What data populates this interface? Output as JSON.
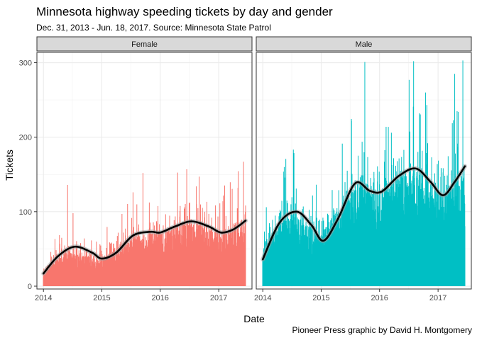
{
  "chart_data": {
    "type": "bar",
    "title": "Minnesota highway speeding tickets by day and gender",
    "subtitle": "Dec. 31, 2013 - Jun. 18, 2017. Source: Minnesota State Patrol",
    "caption": "Pioneer Press graphic by David H. Montgomery",
    "xlabel": "Date",
    "ylabel": "Tickets",
    "xlim": [
      "2013-12-31",
      "2017-06-18"
    ],
    "ylim": [
      0,
      310
    ],
    "x_ticks": [
      "2014",
      "2015",
      "2016",
      "2017"
    ],
    "y_ticks": [
      0,
      100,
      200,
      300
    ],
    "grid": true,
    "panels": [
      {
        "label": "Female",
        "color": "#F8766D",
        "daily_baseline": [
          {
            "x": "2014-01-01",
            "y": 22
          },
          {
            "x": "2014-06-01",
            "y": 40
          },
          {
            "x": "2014-12-15",
            "y": 32
          },
          {
            "x": "2015-07-01",
            "y": 58
          },
          {
            "x": "2016-01-01",
            "y": 64
          },
          {
            "x": "2016-07-01",
            "y": 80
          },
          {
            "x": "2017-01-01",
            "y": 65
          },
          {
            "x": "2017-06-18",
            "y": 80
          }
        ],
        "peaks": [
          {
            "x": "2014-06-01",
            "y": 136
          },
          {
            "x": "2014-07-05",
            "y": 98
          },
          {
            "x": "2015-07-15",
            "y": 126
          },
          {
            "x": "2015-09-15",
            "y": 152
          },
          {
            "x": "2016-06-15",
            "y": 157
          },
          {
            "x": "2016-09-01",
            "y": 147
          },
          {
            "x": "2017-05-01",
            "y": 132
          },
          {
            "x": "2017-06-05",
            "y": 167
          }
        ],
        "trend": [
          {
            "x": "2014-01-01",
            "y": 17
          },
          {
            "x": "2014-04-01",
            "y": 40
          },
          {
            "x": "2014-07-15",
            "y": 53
          },
          {
            "x": "2014-11-01",
            "y": 45
          },
          {
            "x": "2015-01-01",
            "y": 37
          },
          {
            "x": "2015-04-01",
            "y": 45
          },
          {
            "x": "2015-07-15",
            "y": 68
          },
          {
            "x": "2015-11-01",
            "y": 73
          },
          {
            "x": "2016-01-01",
            "y": 72
          },
          {
            "x": "2016-04-01",
            "y": 80
          },
          {
            "x": "2016-07-15",
            "y": 87
          },
          {
            "x": "2016-11-01",
            "y": 80
          },
          {
            "x": "2017-01-15",
            "y": 72
          },
          {
            "x": "2017-04-01",
            "y": 76
          },
          {
            "x": "2017-06-18",
            "y": 88
          }
        ]
      },
      {
        "label": "Male",
        "color": "#00BFC4",
        "daily_baseline": [
          {
            "x": "2014-01-01",
            "y": 50
          },
          {
            "x": "2014-07-01",
            "y": 90
          },
          {
            "x": "2015-01-01",
            "y": 60
          },
          {
            "x": "2015-08-01",
            "y": 125
          },
          {
            "x": "2016-01-01",
            "y": 115
          },
          {
            "x": "2016-08-01",
            "y": 140
          },
          {
            "x": "2017-01-15",
            "y": 110
          },
          {
            "x": "2017-06-18",
            "y": 145
          }
        ],
        "peaks": [
          {
            "x": "2014-05-15",
            "y": 160
          },
          {
            "x": "2015-07-10",
            "y": 222
          },
          {
            "x": "2015-10-01",
            "y": 301
          },
          {
            "x": "2016-03-15",
            "y": 206
          },
          {
            "x": "2016-08-01",
            "y": 302
          },
          {
            "x": "2016-10-15",
            "y": 260
          },
          {
            "x": "2017-04-15",
            "y": 285
          },
          {
            "x": "2017-06-05",
            "y": 303
          }
        ],
        "trend": [
          {
            "x": "2014-01-01",
            "y": 36
          },
          {
            "x": "2014-04-15",
            "y": 85
          },
          {
            "x": "2014-08-01",
            "y": 100
          },
          {
            "x": "2014-11-01",
            "y": 82
          },
          {
            "x": "2015-01-15",
            "y": 61
          },
          {
            "x": "2015-04-15",
            "y": 90
          },
          {
            "x": "2015-08-01",
            "y": 138
          },
          {
            "x": "2015-11-01",
            "y": 128
          },
          {
            "x": "2016-01-15",
            "y": 127
          },
          {
            "x": "2016-05-01",
            "y": 148
          },
          {
            "x": "2016-08-15",
            "y": 158
          },
          {
            "x": "2016-11-15",
            "y": 140
          },
          {
            "x": "2017-02-01",
            "y": 122
          },
          {
            "x": "2017-04-15",
            "y": 140
          },
          {
            "x": "2017-06-18",
            "y": 161
          }
        ]
      }
    ]
  }
}
